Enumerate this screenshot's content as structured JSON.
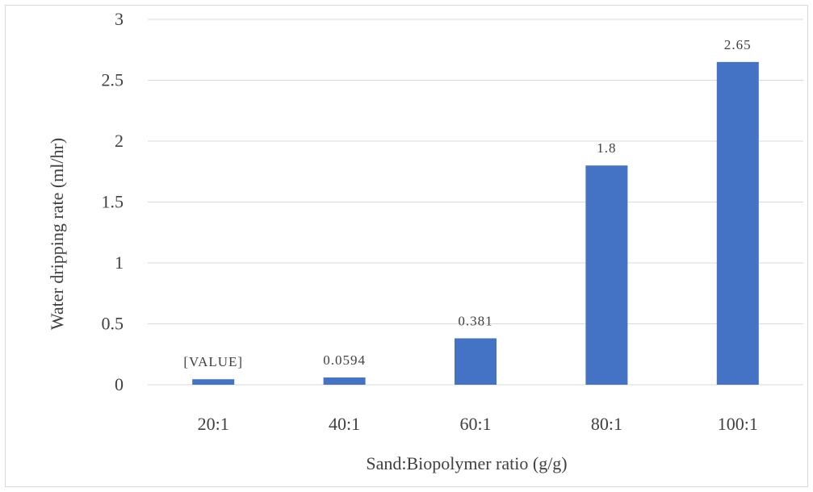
{
  "chart_data": {
    "type": "bar",
    "title": "",
    "xlabel": "Sand:Biopolymer ratio (g/g)",
    "ylabel": "Water dripping rate (ml/hr)",
    "categories": [
      "20:1",
      "40:1",
      "60:1",
      "80:1",
      "100:1"
    ],
    "values": [
      0.045,
      0.0594,
      0.381,
      1.8,
      2.65
    ],
    "data_labels": [
      "[VALUE]",
      "0.0594",
      "0.381",
      "1.8",
      "2.65"
    ],
    "ylim": [
      0,
      3
    ],
    "yticks": [
      0,
      0.5,
      1,
      1.5,
      2,
      2.5,
      3
    ],
    "ytick_labels": [
      "0",
      "0.5",
      "1",
      "1.5",
      "2",
      "2.5",
      "3"
    ],
    "grid": true,
    "legend": "none",
    "colors": {
      "bar": "#4472c4",
      "grid": "#d9d9d9",
      "text": "#404040"
    }
  }
}
